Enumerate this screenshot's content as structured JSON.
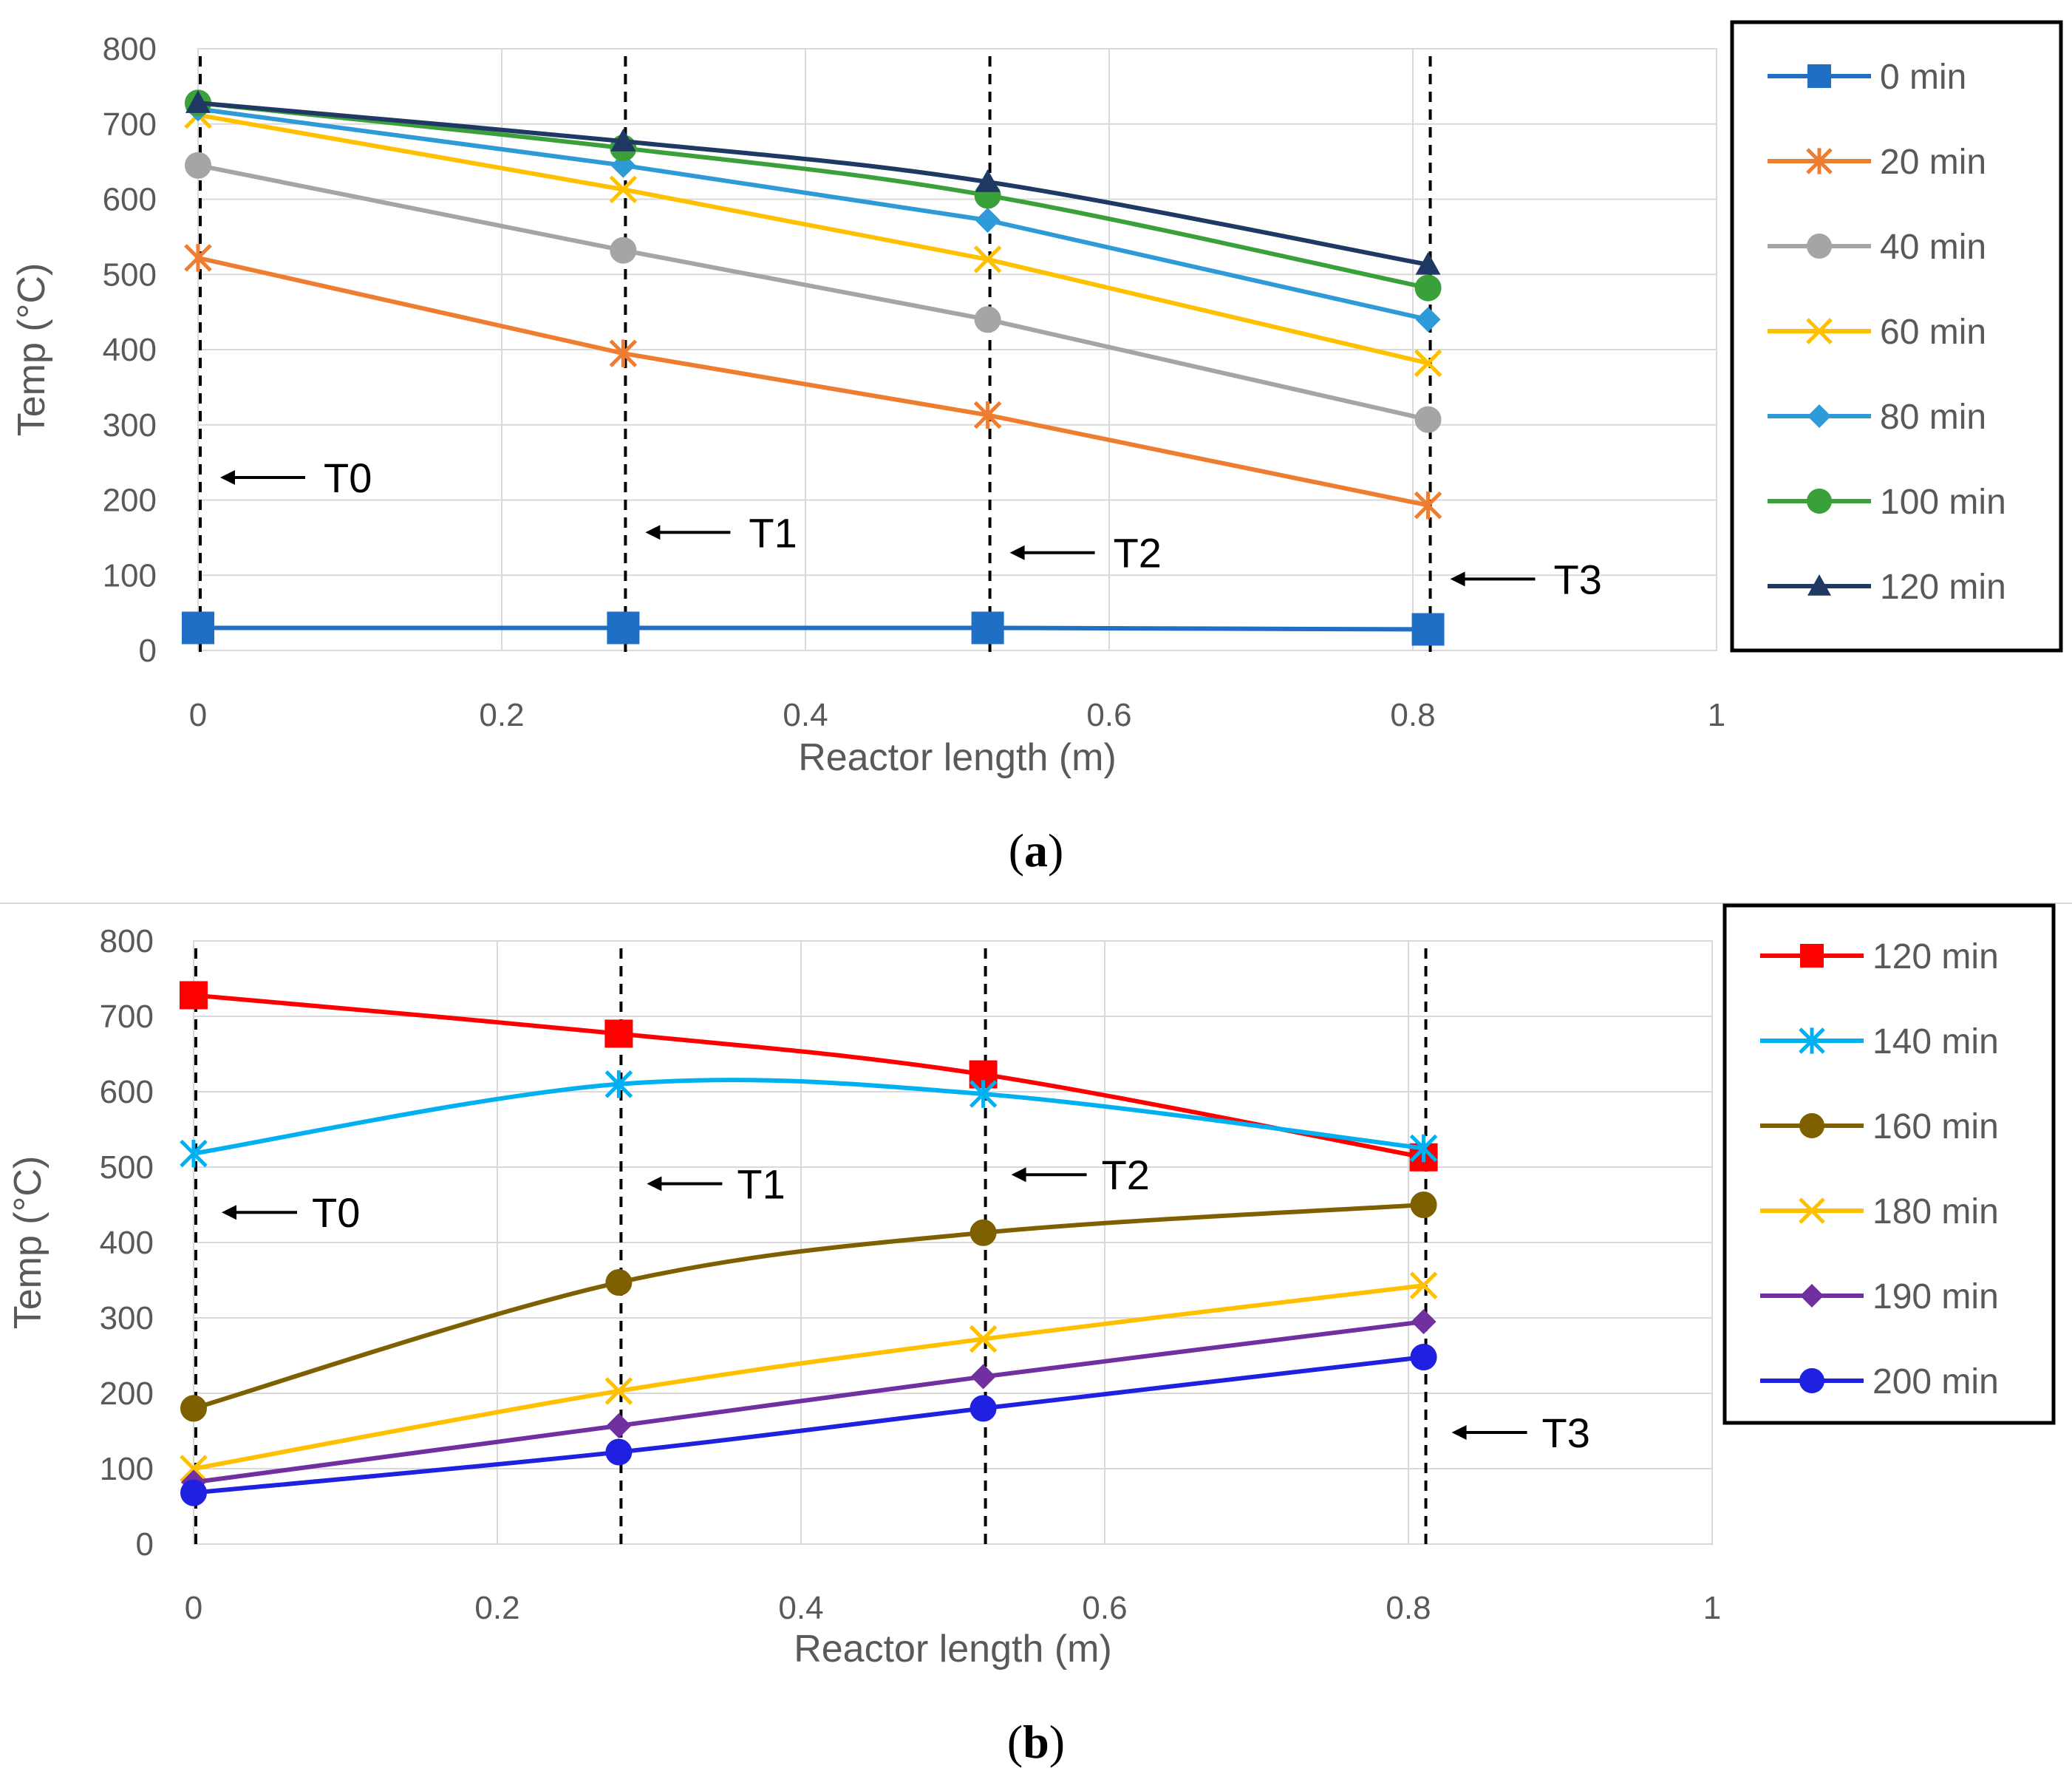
{
  "chart_data": [
    {
      "type": "line",
      "panel_label": "a",
      "xlabel": "Reactor length (m)",
      "ylabel": "Temp (°C)",
      "xlim": [
        0,
        1
      ],
      "ylim": [
        0,
        800
      ],
      "x_ticks": [
        "0",
        "0.2",
        "0.4",
        "0.6",
        "0.8",
        "1"
      ],
      "y_ticks": [
        "0",
        "100",
        "200",
        "300",
        "400",
        "500",
        "600",
        "700",
        "800"
      ],
      "grid": true,
      "legend_position": "right",
      "x": [
        0,
        0.28,
        0.52,
        0.81
      ],
      "series": [
        {
          "name": "0 min",
          "color": "#1f6fc5",
          "marker": "square",
          "smooth": false,
          "values": [
            30,
            30,
            30,
            28
          ]
        },
        {
          "name": "20 min",
          "color": "#ed7d31",
          "marker": "star",
          "smooth": false,
          "values": [
            522,
            395,
            313,
            193
          ]
        },
        {
          "name": "40 min",
          "color": "#a5a5a5",
          "marker": "circle",
          "smooth": false,
          "values": [
            645,
            532,
            440,
            307
          ]
        },
        {
          "name": "60 min",
          "color": "#ffc000",
          "marker": "x",
          "smooth": false,
          "values": [
            712,
            613,
            520,
            382
          ]
        },
        {
          "name": "80 min",
          "color": "#2e9ad8",
          "marker": "diamond",
          "smooth": false,
          "values": [
            720,
            645,
            572,
            440
          ]
        },
        {
          "name": "100 min",
          "color": "#3aa03a",
          "marker": "circle",
          "smooth": true,
          "values": [
            728,
            668,
            605,
            482
          ]
        },
        {
          "name": "120 min",
          "color": "#1f3864",
          "marker": "triangle",
          "smooth": true,
          "values": [
            728,
            677,
            623,
            513
          ]
        }
      ],
      "annotations": [
        {
          "label": "T0",
          "x": 0,
          "y": 230
        },
        {
          "label": "T1",
          "x": 0.28,
          "y": 157
        },
        {
          "label": "T2",
          "x": 0.52,
          "y": 130
        },
        {
          "label": "T3",
          "x": 0.81,
          "y": 95
        }
      ]
    },
    {
      "type": "line",
      "panel_label": "b",
      "xlabel": "Reactor length (m)",
      "ylabel": "Temp (°C)",
      "xlim": [
        0,
        1
      ],
      "ylim": [
        0,
        800
      ],
      "x_ticks": [
        "0",
        "0.2",
        "0.4",
        "0.6",
        "0.8",
        "1"
      ],
      "y_ticks": [
        "0",
        "100",
        "200",
        "300",
        "400",
        "500",
        "600",
        "700",
        "800"
      ],
      "grid": true,
      "legend_position": "right",
      "x": [
        0,
        0.28,
        0.52,
        0.81
      ],
      "series": [
        {
          "name": "120 min",
          "color": "#ff0000",
          "marker": "square",
          "smooth": true,
          "values": [
            728,
            677,
            623,
            513
          ]
        },
        {
          "name": "140 min",
          "color": "#00b0f0",
          "marker": "star",
          "smooth": true,
          "values": [
            518,
            610,
            597,
            525
          ]
        },
        {
          "name": "160 min",
          "color": "#7f6000",
          "marker": "circle",
          "smooth": true,
          "values": [
            180,
            347,
            413,
            450
          ]
        },
        {
          "name": "180 min",
          "color": "#ffc000",
          "marker": "x",
          "smooth": true,
          "values": [
            100,
            203,
            272,
            343
          ]
        },
        {
          "name": "190 min",
          "color": "#7030a0",
          "marker": "diamond",
          "smooth": true,
          "values": [
            82,
            157,
            222,
            295
          ]
        },
        {
          "name": "200 min",
          "color": "#2020e0",
          "marker": "circle",
          "smooth": true,
          "values": [
            68,
            122,
            180,
            248
          ]
        }
      ],
      "annotations": [
        {
          "label": "T0",
          "x": 0,
          "y": 440
        },
        {
          "label": "T1",
          "x": 0.28,
          "y": 478
        },
        {
          "label": "T2",
          "x": 0.52,
          "y": 490
        },
        {
          "label": "T3",
          "x": 0.81,
          "y": 148
        }
      ]
    }
  ]
}
